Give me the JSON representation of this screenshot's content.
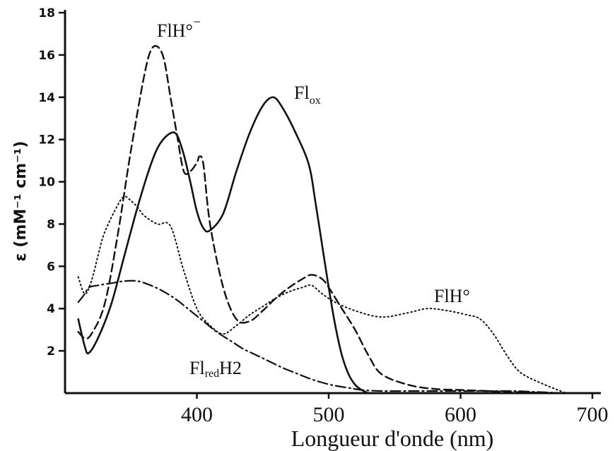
{
  "chart_data": {
    "type": "line",
    "xlabel": "Longueur d'onde (nm)",
    "ylabel": "ε (mM⁻¹ cm⁻¹)",
    "xlim": [
      300,
      700
    ],
    "ylim": [
      0,
      18
    ],
    "x_ticks": [
      400,
      500,
      600,
      700
    ],
    "y_ticks": [
      2,
      4,
      6,
      8,
      10,
      12,
      14,
      16,
      18
    ],
    "grid": false,
    "colors": {
      "ink": "#111111",
      "background": "#ffffff"
    },
    "series": [
      {
        "name_main": "Fl",
        "name_sub": "ox",
        "line_style": "solid",
        "x": [
          310,
          315,
          318,
          325,
          335,
          345,
          355,
          365,
          372,
          380,
          385,
          390,
          395,
          400,
          405,
          410,
          420,
          430,
          440,
          450,
          458,
          465,
          475,
          485,
          490,
          495,
          500,
          505,
          510,
          515,
          520,
          525,
          530
        ],
        "y": [
          3.5,
          2.2,
          1.9,
          2.6,
          4.2,
          6.5,
          8.8,
          10.8,
          11.8,
          12.3,
          12.2,
          11.3,
          10.0,
          8.6,
          7.8,
          7.7,
          8.5,
          10.5,
          12.3,
          13.6,
          14.0,
          13.5,
          12.3,
          10.8,
          9.0,
          7.0,
          5.0,
          3.2,
          1.8,
          0.9,
          0.4,
          0.15,
          0.0
        ]
      },
      {
        "name_main": "FlH°",
        "name_sub": "⁻",
        "line_style": "dashed",
        "x": [
          310,
          315,
          320,
          330,
          340,
          350,
          360,
          365,
          370,
          375,
          380,
          385,
          390,
          395,
          400,
          402,
          405,
          410,
          420,
          430,
          440,
          450,
          460,
          470,
          480,
          487,
          495,
          500,
          510,
          520,
          530,
          540,
          560,
          580,
          600,
          620,
          640,
          660,
          680
        ],
        "y": [
          2.9,
          2.6,
          2.8,
          4.2,
          7.5,
          11.5,
          15.0,
          16.2,
          16.4,
          15.8,
          14.0,
          12.2,
          10.5,
          10.5,
          10.9,
          11.2,
          10.8,
          8.0,
          5.0,
          3.5,
          3.4,
          3.9,
          4.5,
          5.0,
          5.4,
          5.6,
          5.4,
          5.0,
          4.0,
          3.0,
          1.8,
          0.9,
          0.4,
          0.2,
          0.15,
          0.1,
          0.05,
          0.02,
          0.0
        ]
      },
      {
        "name_main": "FlH°",
        "name_sub": "",
        "line_style": "dotted",
        "x": [
          310,
          315,
          320,
          325,
          330,
          340,
          345,
          350,
          355,
          360,
          370,
          380,
          390,
          400,
          410,
          420,
          430,
          440,
          450,
          460,
          470,
          480,
          487,
          495,
          505,
          520,
          540,
          560,
          575,
          590,
          605,
          615,
          625,
          635,
          645,
          660,
          680
        ],
        "y": [
          5.5,
          4.7,
          5.3,
          6.5,
          7.6,
          8.9,
          9.3,
          9.1,
          8.8,
          8.4,
          8.0,
          7.9,
          5.8,
          4.0,
          3.2,
          2.8,
          3.2,
          3.7,
          4.1,
          4.5,
          4.8,
          5.0,
          5.1,
          4.7,
          4.3,
          3.9,
          3.6,
          3.8,
          4.0,
          3.9,
          3.7,
          3.5,
          2.8,
          1.8,
          1.0,
          0.5,
          0.0
        ]
      },
      {
        "name_main": "Fl",
        "name_sub": "red",
        "name_tail": "H2",
        "line_style": "dashdot",
        "x": [
          310,
          315,
          318,
          325,
          335,
          345,
          355,
          365,
          375,
          385,
          395,
          405,
          415,
          425,
          435,
          445,
          455,
          465,
          475,
          485,
          495,
          505,
          515,
          525,
          540,
          560,
          580,
          600,
          620,
          640,
          660,
          680
        ],
        "y": [
          4.3,
          4.7,
          5.0,
          5.1,
          5.2,
          5.3,
          5.3,
          5.1,
          4.8,
          4.4,
          3.9,
          3.4,
          2.9,
          2.5,
          2.1,
          1.8,
          1.5,
          1.2,
          0.95,
          0.7,
          0.5,
          0.35,
          0.25,
          0.15,
          0.1,
          0.1,
          0.1,
          0.1,
          0.1,
          0.1,
          0.05,
          0.0
        ]
      }
    ]
  }
}
